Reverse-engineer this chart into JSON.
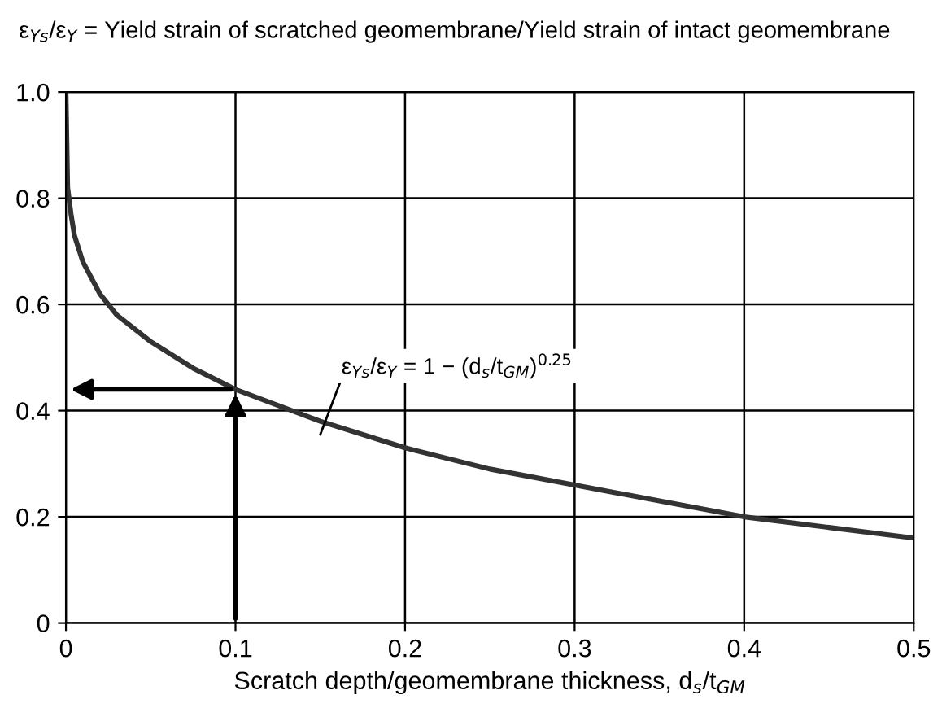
{
  "chart_data": {
    "type": "line",
    "title": "ε$_{Ys}$/ε$_{Y}$ = Yield strain of scratched geomembrane/Yield strain of intact geomembrane",
    "xlabel": "Scratch depth/geomembrane thickness, d$_{s}$/t$_{GM}$",
    "x": [
      0,
      0.001,
      0.003,
      0.005,
      0.01,
      0.02,
      0.03,
      0.05,
      0.075,
      0.1,
      0.15,
      0.2,
      0.25,
      0.3,
      0.35,
      0.4,
      0.45,
      0.5
    ],
    "series": [
      {
        "color": "#333333",
        "values": [
          1.0,
          0.82,
          0.77,
          0.73,
          0.68,
          0.62,
          0.58,
          0.53,
          0.48,
          0.44,
          0.38,
          0.33,
          0.29,
          0.26,
          0.23,
          0.2,
          0.18,
          0.16
        ]
      }
    ],
    "annotations": [
      "ε$_{Ys}$/ε$_{Y}$ = 1 − (d$_{s}$/t$_{GM}$)$^{0.25}$"
    ],
    "xlim": [
      0,
      0.5
    ],
    "ylim": [
      0,
      1
    ],
    "xticks": [
      0,
      0.1,
      0.2,
      0.3,
      0.4,
      0.5
    ],
    "yticks": [
      0,
      0.2,
      0.4,
      0.6,
      0.8,
      {
        "value": 1,
        "label": "1.0"
      }
    ],
    "grid": true,
    "marker": "none",
    "line_style": "solid"
  }
}
